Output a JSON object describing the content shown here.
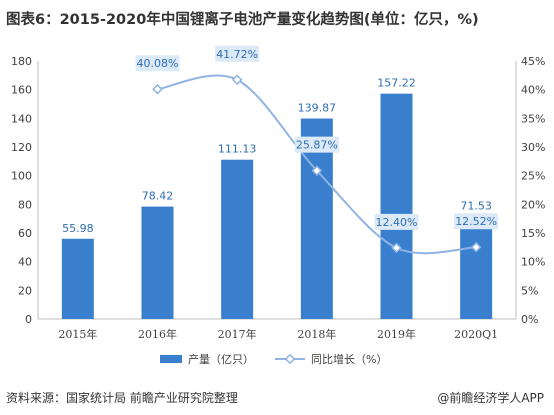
{
  "title": "图表6：2015-2020年中国锂离子电池产量变化趋势图(单位：亿只，%)",
  "source": "资料来源：国家统计局 前瞻产业研究院整理",
  "brand": "@前瞻经济学人APP",
  "colors": {
    "bar": "#3a7fce",
    "line": "#8fb4e3",
    "label_bg": "#dce9f7",
    "label_text": "#2f6fb3"
  },
  "chart_data": {
    "type": "bar",
    "categories": [
      "2015年",
      "2016年",
      "2017年",
      "2018年",
      "2019年",
      "2020Q1"
    ],
    "series": [
      {
        "name": "产量（亿只）",
        "type": "bar",
        "axis": "left",
        "values": [
          55.98,
          78.42,
          111.13,
          139.87,
          157.22,
          71.53
        ],
        "labels": [
          "55.98",
          "78.42",
          "111.13",
          "139.87",
          "157.22",
          "71.53"
        ]
      },
      {
        "name": "同比增长（%）",
        "type": "line",
        "axis": "right",
        "values": [
          null,
          40.08,
          41.72,
          25.87,
          12.4,
          12.52
        ],
        "labels": [
          "",
          "40.08%",
          "41.72%",
          "25.87%",
          "12.40%",
          "12.52%"
        ]
      }
    ],
    "ylim_left": [
      0,
      180
    ],
    "yticks_left": [
      "0",
      "20",
      "40",
      "60",
      "80",
      "100",
      "120",
      "140",
      "160",
      "180"
    ],
    "ylim_right": [
      0,
      45
    ],
    "yticks_right": [
      "0%",
      "5%",
      "10%",
      "15%",
      "20%",
      "25%",
      "30%",
      "35%",
      "40%",
      "45%"
    ],
    "grid": false,
    "legend_position": "bottom"
  }
}
